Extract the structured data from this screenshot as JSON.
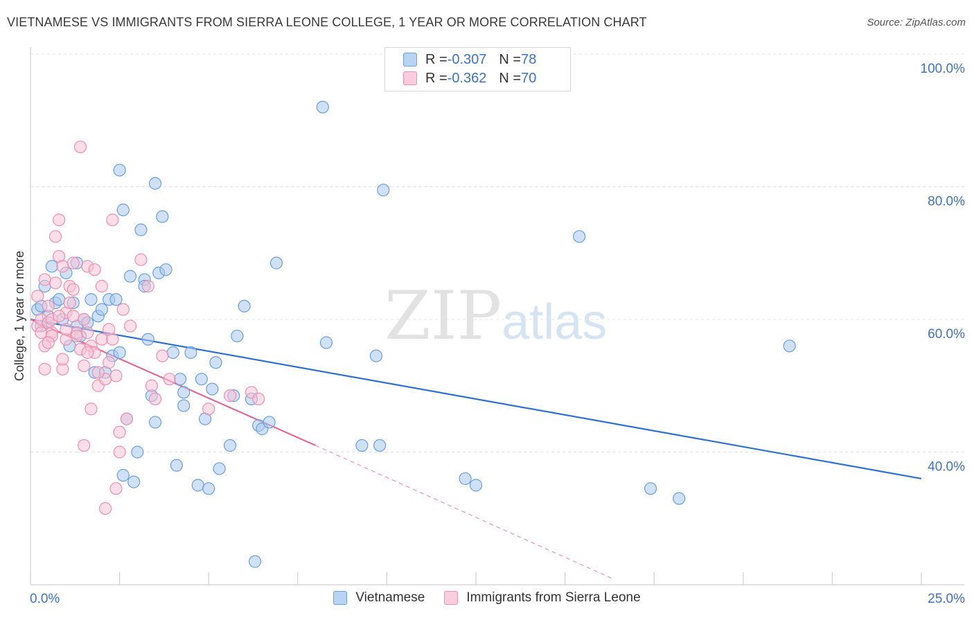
{
  "header": {
    "title": "VIETNAMESE VS IMMIGRANTS FROM SIERRA LEONE COLLEGE, 1 YEAR OR MORE CORRELATION CHART",
    "source": "Source: ZipAtlas.com"
  },
  "watermark": {
    "zip": "ZIP",
    "atlas": "atlas"
  },
  "legend": {
    "rows": [
      {
        "r_label": "R = ",
        "r_value": "-0.307",
        "n_label": "N = ",
        "n_value": "78"
      },
      {
        "r_label": "R = ",
        "r_value": "-0.362",
        "n_label": "N = ",
        "n_value": "70"
      }
    ]
  },
  "chart_data": {
    "type": "scatter",
    "title": "VIETNAMESE VS IMMIGRANTS FROM SIERRA LEONE COLLEGE, 1 YEAR OR MORE CORRELATION CHART",
    "xlabel": "",
    "ylabel": "College, 1 year or more",
    "xlim": [
      0,
      25
    ],
    "ylim": [
      20,
      100
    ],
    "x_tick_labels": [
      "0.0%",
      "25.0%"
    ],
    "y_ticks": [
      40,
      60,
      80,
      100
    ],
    "y_tick_labels": [
      "40.0%",
      "60.0%",
      "80.0%",
      "100.0%"
    ],
    "grid": true,
    "legend_position": "top-center",
    "series": [
      {
        "name": "Vietnamese",
        "color": "#6a9fe0",
        "fill": "#a9c8ef",
        "line_color": "#2f6fd0",
        "r": -0.307,
        "n": 78,
        "trend": {
          "x0": 0.0,
          "y0": 60.0,
          "x1": 25.0,
          "y1": 36.0
        },
        "points": [
          [
            0.2,
            61.5
          ],
          [
            0.3,
            62.0
          ],
          [
            0.4,
            65.0
          ],
          [
            0.5,
            60.5
          ],
          [
            0.6,
            68.0
          ],
          [
            0.7,
            62.5
          ],
          [
            0.8,
            63.0
          ],
          [
            0.9,
            60.0
          ],
          [
            1.0,
            67.0
          ],
          [
            1.1,
            56.0
          ],
          [
            1.2,
            62.5
          ],
          [
            1.3,
            68.5
          ],
          [
            1.4,
            57.5
          ],
          [
            1.5,
            60.0
          ],
          [
            1.6,
            59.5
          ],
          [
            1.7,
            63.0
          ],
          [
            1.8,
            52.0
          ],
          [
            1.9,
            60.5
          ],
          [
            2.0,
            61.5
          ],
          [
            2.1,
            52.0
          ],
          [
            2.2,
            63.0
          ],
          [
            2.3,
            54.5
          ],
          [
            2.4,
            63.0
          ],
          [
            2.6,
            36.5
          ],
          [
            2.5,
            55.0
          ],
          [
            2.5,
            82.5
          ],
          [
            2.6,
            76.5
          ],
          [
            2.7,
            45.0
          ],
          [
            2.8,
            66.5
          ],
          [
            2.9,
            35.5
          ],
          [
            3.0,
            40.0
          ],
          [
            3.1,
            73.5
          ],
          [
            3.2,
            66.0
          ],
          [
            3.2,
            65.0
          ],
          [
            3.3,
            57.0
          ],
          [
            3.4,
            48.5
          ],
          [
            3.5,
            44.5
          ],
          [
            3.5,
            80.5
          ],
          [
            3.6,
            67.0
          ],
          [
            3.7,
            75.5
          ],
          [
            3.8,
            67.5
          ],
          [
            4.0,
            55.0
          ],
          [
            4.1,
            38.0
          ],
          [
            4.2,
            51.0
          ],
          [
            4.3,
            49.0
          ],
          [
            4.3,
            47.0
          ],
          [
            4.5,
            55.0
          ],
          [
            4.7,
            35.0
          ],
          [
            4.8,
            51.0
          ],
          [
            4.9,
            45.0
          ],
          [
            5.0,
            34.5
          ],
          [
            5.1,
            49.5
          ],
          [
            5.2,
            53.5
          ],
          [
            5.3,
            37.5
          ],
          [
            5.6,
            41.0
          ],
          [
            5.7,
            48.5
          ],
          [
            5.8,
            57.5
          ],
          [
            6.0,
            62.0
          ],
          [
            6.2,
            48.0
          ],
          [
            6.3,
            23.5
          ],
          [
            6.4,
            44.0
          ],
          [
            6.5,
            43.5
          ],
          [
            6.7,
            44.5
          ],
          [
            6.9,
            68.5
          ],
          [
            8.2,
            92.0
          ],
          [
            8.3,
            56.5
          ],
          [
            9.3,
            41.0
          ],
          [
            9.7,
            54.5
          ],
          [
            9.8,
            41.0
          ],
          [
            9.9,
            79.5
          ],
          [
            12.2,
            36.0
          ],
          [
            12.5,
            35.0
          ],
          [
            15.4,
            72.5
          ],
          [
            17.4,
            34.5
          ],
          [
            18.2,
            33.0
          ],
          [
            21.3,
            56.0
          ],
          [
            0.3,
            59.0
          ],
          [
            1.3,
            59.0
          ]
        ]
      },
      {
        "name": "Immigrants from Sierra Leone",
        "color": "#ee8fb0",
        "fill": "#f7c2d4",
        "line_color": "#e06a96",
        "r": -0.362,
        "n": 70,
        "trend": {
          "x0": 0.0,
          "y0": 60.0,
          "x1": 8.0,
          "y1": 41.0
        },
        "trend_ext": {
          "x0": 8.0,
          "y0": 41.0,
          "x1": 16.3,
          "y1": 21.0
        },
        "points": [
          [
            0.2,
            59.0
          ],
          [
            0.3,
            60.0
          ],
          [
            0.3,
            58.0
          ],
          [
            0.4,
            52.5
          ],
          [
            0.4,
            56.0
          ],
          [
            0.5,
            59.5
          ],
          [
            0.5,
            62.0
          ],
          [
            0.6,
            58.0
          ],
          [
            0.6,
            60.0
          ],
          [
            0.7,
            65.5
          ],
          [
            0.7,
            72.5
          ],
          [
            0.8,
            75.0
          ],
          [
            0.8,
            69.5
          ],
          [
            0.9,
            52.5
          ],
          [
            0.9,
            54.0
          ],
          [
            1.0,
            57.0
          ],
          [
            1.0,
            61.0
          ],
          [
            1.1,
            62.5
          ],
          [
            1.1,
            65.0
          ],
          [
            1.2,
            68.5
          ],
          [
            1.2,
            60.5
          ],
          [
            1.3,
            58.0
          ],
          [
            1.3,
            57.5
          ],
          [
            1.4,
            55.5
          ],
          [
            1.4,
            86.0
          ],
          [
            1.5,
            60.0
          ],
          [
            1.5,
            41.0
          ],
          [
            1.6,
            68.0
          ],
          [
            1.6,
            58.0
          ],
          [
            1.7,
            46.5
          ],
          [
            1.7,
            56.0
          ],
          [
            1.8,
            67.5
          ],
          [
            1.8,
            55.0
          ],
          [
            1.9,
            50.0
          ],
          [
            2.0,
            57.0
          ],
          [
            2.0,
            65.0
          ],
          [
            2.1,
            51.0
          ],
          [
            2.1,
            31.5
          ],
          [
            2.2,
            53.5
          ],
          [
            2.3,
            75.0
          ],
          [
            2.3,
            57.0
          ],
          [
            2.4,
            51.5
          ],
          [
            2.4,
            34.5
          ],
          [
            2.5,
            43.0
          ],
          [
            2.5,
            40.0
          ],
          [
            2.6,
            61.5
          ],
          [
            2.7,
            45.0
          ],
          [
            3.1,
            69.0
          ],
          [
            3.3,
            65.0
          ],
          [
            3.4,
            50.0
          ],
          [
            3.5,
            48.0
          ],
          [
            3.7,
            54.5
          ],
          [
            3.9,
            51.0
          ],
          [
            5.0,
            46.5
          ],
          [
            5.6,
            48.5
          ],
          [
            6.2,
            49.0
          ],
          [
            6.4,
            48.0
          ],
          [
            0.2,
            63.5
          ],
          [
            0.6,
            57.5
          ],
          [
            1.0,
            58.5
          ],
          [
            1.5,
            53.0
          ],
          [
            1.9,
            52.0
          ],
          [
            2.8,
            59.0
          ],
          [
            0.4,
            66.0
          ],
          [
            0.9,
            68.0
          ],
          [
            1.2,
            64.5
          ],
          [
            0.5,
            56.5
          ],
          [
            1.6,
            55.0
          ],
          [
            2.2,
            58.5
          ],
          [
            0.8,
            60.5
          ]
        ]
      }
    ]
  }
}
